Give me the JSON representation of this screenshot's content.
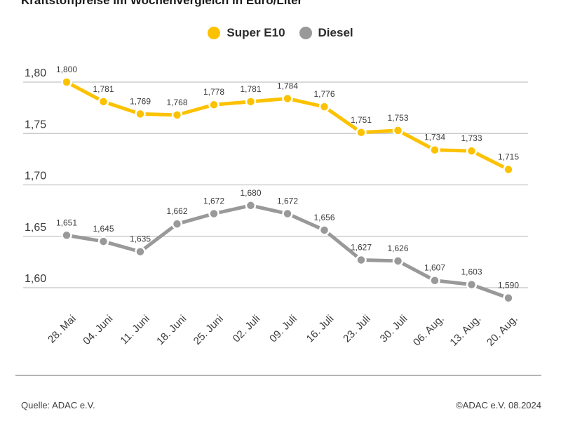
{
  "page": {
    "title": "Kraftstoffpreise im Wochenvergleich in Euro/Liter",
    "source_left": "Quelle: ADAC e.V.",
    "source_right": "©ADAC e.V. 08.2024"
  },
  "colors": {
    "super_e10": "#FCC200",
    "diesel": "#999999",
    "gridline": "#c3c3c3",
    "text": "#3c3c3c"
  },
  "legend": [
    {
      "label": "Super E10",
      "color": "#FCC200"
    },
    {
      "label": "Diesel",
      "color": "#999999"
    }
  ],
  "chart_data": {
    "type": "line",
    "title": "Kraftstoffpreise im Wochenvergleich in Euro/Liter",
    "xlabel": "",
    "ylabel": "Euro/Liter",
    "grid": true,
    "legend_position": "top",
    "ylim": [
      1.6,
      1.8
    ],
    "categories": [
      "28. Mai",
      "04. Juni",
      "11. Juni",
      "18. Juni",
      "25. Juni",
      "02. Juli",
      "09. Juli",
      "16. Juli",
      "23. Juli",
      "30. Juli",
      "06. Aug.",
      "13. Aug.",
      "20. Aug."
    ],
    "y_ticks": [
      {
        "label": "1,80",
        "value": 1.8
      },
      {
        "label": "1,75",
        "value": 1.75
      },
      {
        "label": "1,70",
        "value": 1.7
      },
      {
        "label": "1,65",
        "value": 1.65
      },
      {
        "label": "1,60",
        "value": 1.6
      }
    ],
    "series": [
      {
        "name": "Super E10",
        "color": "#FCC200",
        "values": [
          1.8,
          1.781,
          1.769,
          1.768,
          1.778,
          1.781,
          1.784,
          1.776,
          1.751,
          1.753,
          1.734,
          1.733,
          1.715
        ],
        "labels": [
          "1,800",
          "1,781",
          "1,769",
          "1,768",
          "1,778",
          "1,781",
          "1,784",
          "1,776",
          "1,751",
          "1,753",
          "1,734",
          "1,733",
          "1,715"
        ]
      },
      {
        "name": "Diesel",
        "color": "#999999",
        "values": [
          1.651,
          1.645,
          1.635,
          1.662,
          1.672,
          1.68,
          1.672,
          1.656,
          1.627,
          1.626,
          1.607,
          1.603,
          1.59
        ],
        "labels": [
          "1,651",
          "1,645",
          "1,635",
          "1,662",
          "1,672",
          "1,680",
          "1,672",
          "1,656",
          "1,627",
          "1,626",
          "1,607",
          "1,603",
          "1,590"
        ]
      }
    ]
  }
}
